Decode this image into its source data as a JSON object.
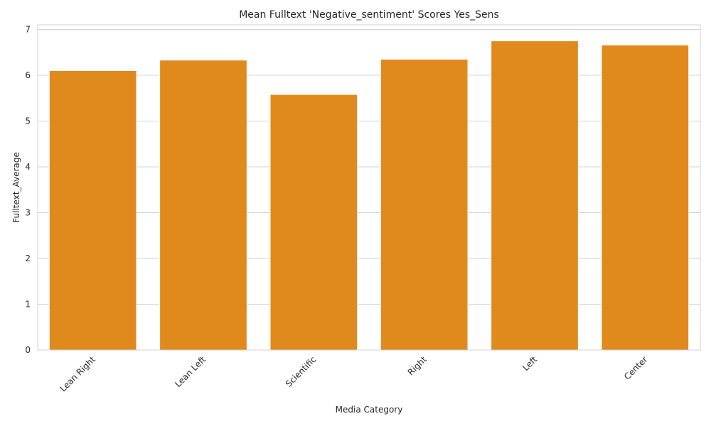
{
  "chart_data": {
    "type": "bar",
    "title": "Mean Fulltext 'Negative_sentiment' Scores Yes_Sens",
    "xlabel": "Media Category",
    "ylabel": "Fulltext_Average",
    "categories": [
      "Lean Right",
      "Lean Left",
      "Scientific",
      "Right",
      "Left",
      "Center"
    ],
    "values": [
      6.1,
      6.33,
      5.58,
      6.35,
      6.75,
      6.66
    ],
    "ylim": [
      0,
      7.1
    ],
    "yticks": [
      "0",
      "1",
      "2",
      "3",
      "4",
      "5",
      "6",
      "7"
    ],
    "grid": "horizontal",
    "bar_color": "#E08A1E",
    "grid_color": "#D3D3D3"
  }
}
